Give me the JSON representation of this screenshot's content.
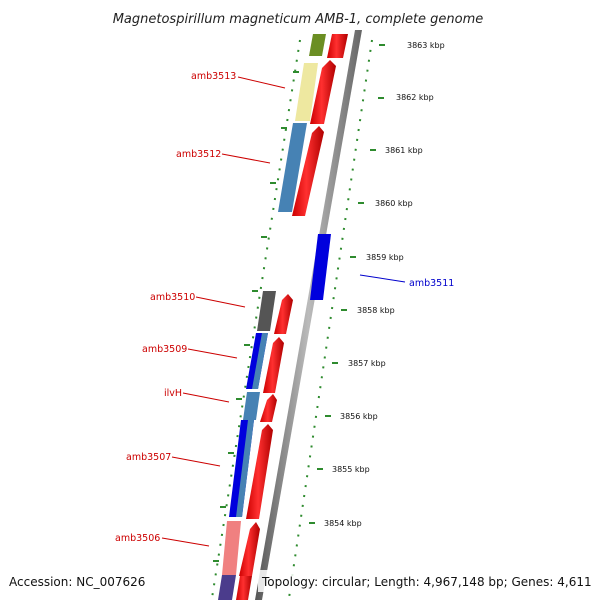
{
  "title": "Magnetospirillum magneticum AMB-1, complete genome",
  "accession": "Accession: NC_007626",
  "topology": "Topology: circular; Length: 4,967,148 bp; Genes: 4,611",
  "kbp_labels": [
    "3863 kbp",
    "3862 kbp",
    "3861 kbp",
    "3860 kbp",
    "3859 kbp",
    "3858 kbp",
    "3857 kbp",
    "3856 kbp",
    "3855 kbp",
    "3854 kbp"
  ],
  "gene_labels": {
    "amb3513": "amb3513",
    "amb3512": "amb3512",
    "amb3511": "amb3511",
    "amb3510": "amb3510",
    "amb3509": "amb3509",
    "ilvH": "ilvH",
    "amb3507": "amb3507",
    "amb3506": "amb3506"
  },
  "colors": {
    "backbone": "#8a8a8a",
    "tick_green": "#2e8b2e",
    "cds_red": "#ff0000",
    "gene_blue": "#0000dd",
    "steel_blue": "#4682b4",
    "khaki": "#eee8a0",
    "olive": "#6b8e23",
    "salmon": "#f08080",
    "dark_gray": "#555555",
    "label_red": "#cc0000",
    "label_blue": "#0000cc"
  }
}
